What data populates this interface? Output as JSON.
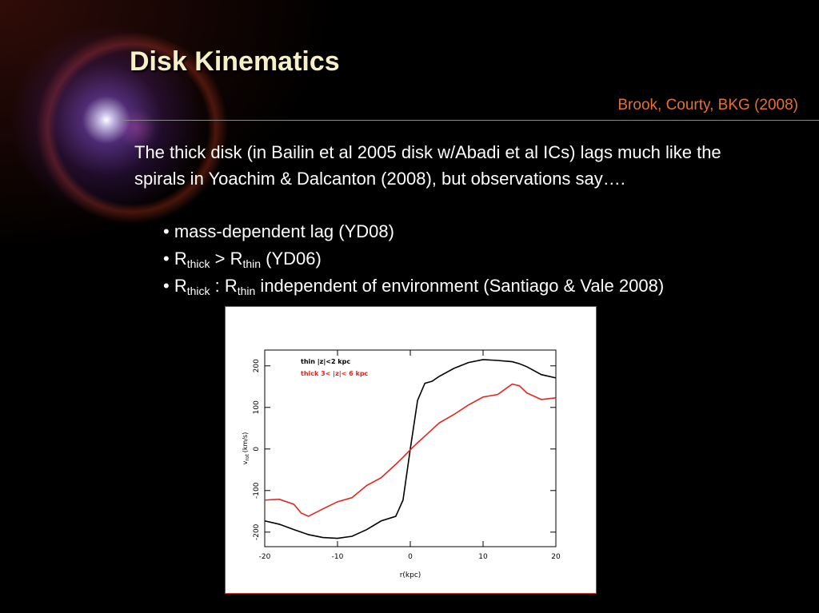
{
  "title": "Disk Kinematics",
  "citation": "Brook, Courty, BKG (2008)",
  "paragraph": "The thick disk (in Bailin et al 2005 disk w/Abadi et al ICs) lags much like the spirals in Yoachim & Dalcanton (2008), but observations say….",
  "bullets": [
    {
      "parts": [
        {
          "text": "• mass-dependent lag (YD08)"
        }
      ]
    },
    {
      "parts": [
        {
          "text": "• R"
        },
        {
          "sub": "thick"
        },
        {
          "text": " > R"
        },
        {
          "sub": "thin"
        },
        {
          "text": " (YD06)"
        }
      ]
    },
    {
      "parts": [
        {
          "text": "• R"
        },
        {
          "sub": "thick"
        },
        {
          "text": " : R"
        },
        {
          "sub": "thin"
        },
        {
          "text": " independent of environment (Santiago & Vale 2008)"
        }
      ]
    }
  ],
  "chart_data": {
    "type": "line",
    "x_label": "r(kpc)",
    "y_label": {
      "main": "v",
      "sub": "rot",
      "unit": "(km/s)"
    },
    "x": [
      -20,
      -18,
      -16,
      -15,
      -14,
      -12,
      -10,
      -8,
      -6,
      -4,
      -2,
      -1,
      0,
      1,
      2,
      3,
      4,
      6,
      8,
      10,
      12,
      14,
      15,
      16,
      18,
      20
    ],
    "series": [
      {
        "name": "thin |z|<2 kpc",
        "color": "#000000",
        "values": [
          -173,
          -181,
          -194,
          -200,
          -206,
          -213,
          -215,
          -210,
          -194,
          -173,
          -162,
          -123,
          0,
          117,
          158,
          163,
          175,
          194,
          208,
          215,
          213,
          210,
          205,
          198,
          179,
          171
        ]
      },
      {
        "name": "thick 3< |z|< 6 kpc",
        "color": "#e8231c",
        "values": [
          -123,
          -121,
          -133,
          -154,
          -162,
          -144,
          -127,
          -117,
          -88,
          -69,
          -37,
          -20,
          -2,
          15,
          31,
          47,
          63,
          83,
          106,
          125,
          131,
          156,
          152,
          135,
          119,
          123
        ]
      }
    ],
    "xlim": [
      -20,
      20
    ],
    "ylim": [
      -235,
      238
    ],
    "xticks": [
      -20,
      -10,
      0,
      10,
      20
    ],
    "yticks": [
      -200,
      -100,
      0,
      100,
      200
    ]
  }
}
